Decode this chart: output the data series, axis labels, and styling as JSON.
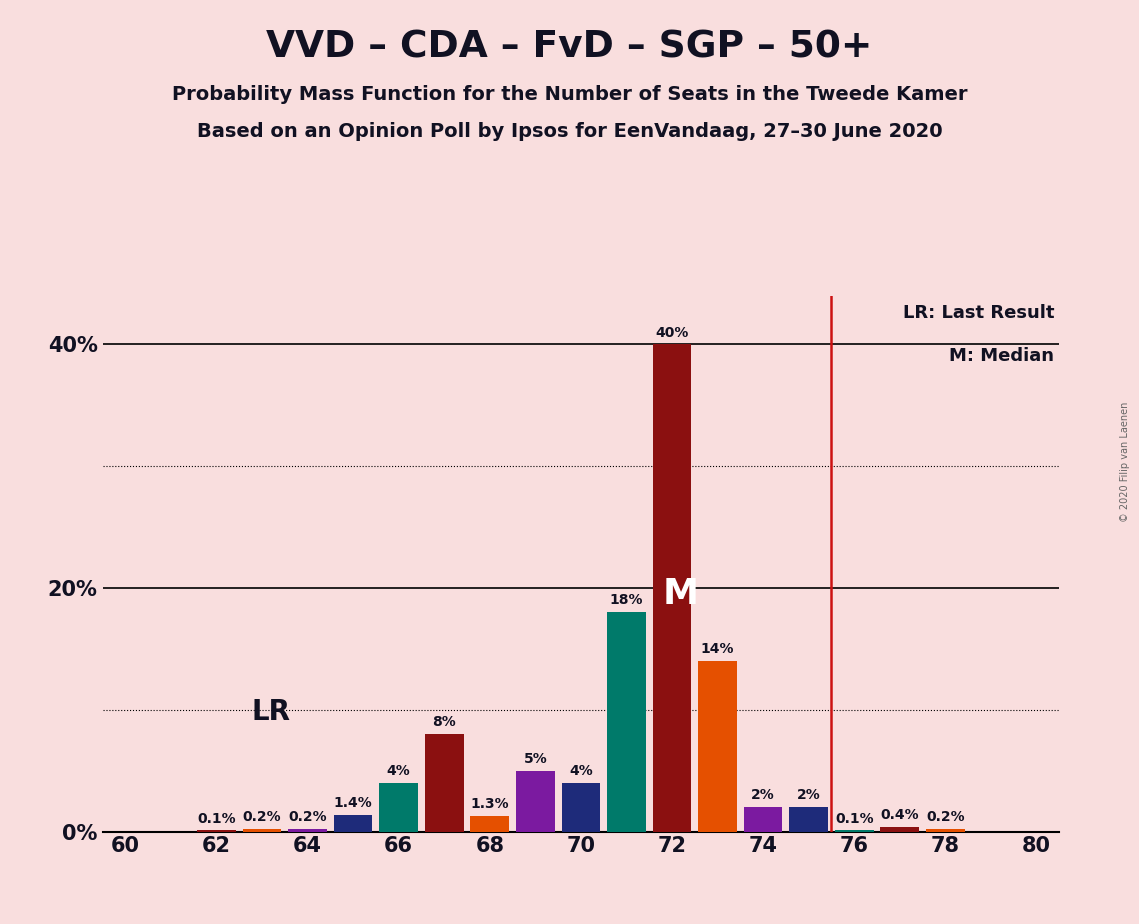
{
  "title": "VVD – CDA – FvD – SGP – 50+",
  "subtitle1": "Probability Mass Function for the Number of Seats in the Tweede Kamer",
  "subtitle2": "Based on an Opinion Poll by Ipsos for EenVandaag, 27–30 June 2020",
  "copyright": "© 2020 Filip van Laenen",
  "background_color": "#f9dede",
  "seats": [
    60,
    61,
    62,
    63,
    64,
    65,
    66,
    67,
    68,
    69,
    70,
    71,
    72,
    73,
    74,
    75,
    76,
    77,
    78,
    79,
    80
  ],
  "probs": [
    0.0,
    0.0,
    0.1,
    0.2,
    0.2,
    1.4,
    4.0,
    8.0,
    1.3,
    5.0,
    4.0,
    18.0,
    40.0,
    14.0,
    2.0,
    2.0,
    0.1,
    0.4,
    0.2,
    0.0,
    0.0
  ],
  "bar_colors": [
    "#1e2b7a",
    "#007a6a",
    "#8b1010",
    "#e55000",
    "#7b1aa0",
    "#1e2b7a",
    "#007a6a",
    "#8b1010",
    "#e55000",
    "#7b1aa0",
    "#1e2b7a",
    "#007a6a",
    "#8b1010",
    "#e55000",
    "#7b1aa0",
    "#1e2b7a",
    "#007a6a",
    "#8b1010",
    "#e55000",
    "#7b1aa0",
    "#1e2b7a"
  ],
  "lr_x": 75.5,
  "median_seat": 72,
  "yticks_solid": [
    0,
    20,
    40
  ],
  "yticks_dotted": [
    10,
    30
  ],
  "ylim": [
    0,
    44
  ],
  "xlim": [
    59.5,
    80.5
  ],
  "xticks": [
    60,
    62,
    64,
    66,
    68,
    70,
    72,
    74,
    76,
    78,
    80
  ],
  "lr_label": "LR",
  "lr_legend": "LR: Last Result",
  "m_legend": "M: Median"
}
